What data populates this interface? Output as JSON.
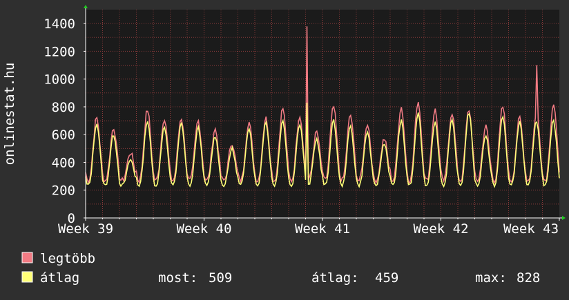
{
  "chart_data": {
    "type": "line",
    "ylabel": "onlinestat.hu",
    "ylim": [
      0,
      1500
    ],
    "yticks": [
      0,
      200,
      400,
      600,
      800,
      1000,
      1200,
      1400
    ],
    "xticks": [
      "Week 39",
      "Week 40",
      "Week 41",
      "Week 42",
      "Week 43"
    ],
    "grid": true,
    "legend_placement": "bottom-left",
    "series": [
      {
        "name": "legtöbb",
        "color": "#f27b84"
      },
      {
        "name": "átlag",
        "color": "#ffff77"
      }
    ],
    "x_days": 28,
    "samples_per_day": 12,
    "daily_peaks_max": [
      720,
      650,
      470,
      780,
      720,
      720,
      700,
      640,
      540,
      690,
      720,
      790,
      740,
      620,
      800,
      740,
      680,
      570,
      800,
      840,
      780,
      760,
      780,
      660,
      800,
      720,
      760,
      820
    ],
    "daily_peaks_avg": [
      680,
      600,
      420,
      700,
      660,
      680,
      650,
      590,
      500,
      650,
      690,
      700,
      680,
      570,
      700,
      660,
      620,
      540,
      700,
      750,
      690,
      700,
      760,
      600,
      730,
      690,
      700,
      700
    ],
    "spikes_max": [
      {
        "day": 13.05,
        "value": 1380
      },
      {
        "day": 26.7,
        "value": 1100
      }
    ],
    "spikes_avg": [
      {
        "day": 13.05,
        "value": 830
      }
    ],
    "stats": {
      "current_label": "most:",
      "current": "509",
      "average_label": "átlag:",
      "average": "459",
      "max_label": "max:",
      "max": "828"
    }
  }
}
